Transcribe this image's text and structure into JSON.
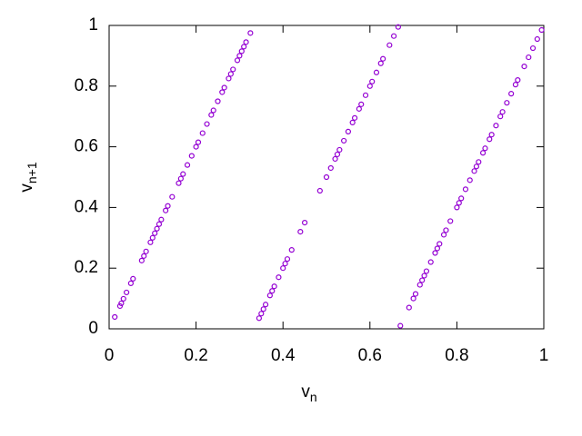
{
  "chart_data": {
    "type": "scatter",
    "xlabel": "v",
    "xlabel_subscript": "n",
    "ylabel": "v",
    "ylabel_subscript": "n+1",
    "color": "#9400d3",
    "xlim": [
      0,
      1
    ],
    "ylim": [
      0,
      1
    ],
    "xticks": [
      0,
      0.2,
      0.4,
      0.6,
      0.8,
      1
    ],
    "yticks": [
      0,
      0.2,
      0.4,
      0.6,
      0.8,
      1
    ],
    "x": [
      0.013,
      0.025,
      0.028,
      0.033,
      0.04,
      0.05,
      0.055,
      0.075,
      0.08,
      0.085,
      0.095,
      0.1,
      0.105,
      0.11,
      0.115,
      0.12,
      0.13,
      0.135,
      0.145,
      0.16,
      0.165,
      0.17,
      0.18,
      0.19,
      0.2,
      0.205,
      0.215,
      0.225,
      0.235,
      0.24,
      0.25,
      0.26,
      0.265,
      0.275,
      0.28,
      0.285,
      0.295,
      0.3,
      0.305,
      0.31,
      0.315,
      0.325,
      0.345,
      0.35,
      0.355,
      0.36,
      0.37,
      0.375,
      0.38,
      0.39,
      0.4,
      0.405,
      0.41,
      0.42,
      0.44,
      0.45,
      0.485,
      0.5,
      0.51,
      0.52,
      0.525,
      0.53,
      0.54,
      0.55,
      0.56,
      0.565,
      0.575,
      0.58,
      0.59,
      0.6,
      0.605,
      0.615,
      0.625,
      0.63,
      0.645,
      0.655,
      0.665,
      0.67,
      0.69,
      0.7,
      0.705,
      0.715,
      0.72,
      0.725,
      0.73,
      0.74,
      0.75,
      0.755,
      0.76,
      0.77,
      0.775,
      0.785,
      0.8,
      0.805,
      0.81,
      0.82,
      0.83,
      0.84,
      0.845,
      0.85,
      0.86,
      0.865,
      0.875,
      0.88,
      0.89,
      0.9,
      0.905,
      0.915,
      0.925,
      0.935,
      0.94,
      0.955,
      0.965,
      0.975,
      0.985,
      0.995
    ],
    "y": [
      0.039,
      0.075,
      0.084,
      0.099,
      0.12,
      0.15,
      0.165,
      0.225,
      0.24,
      0.255,
      0.285,
      0.3,
      0.315,
      0.33,
      0.345,
      0.36,
      0.39,
      0.405,
      0.435,
      0.48,
      0.495,
      0.51,
      0.54,
      0.57,
      0.6,
      0.615,
      0.645,
      0.675,
      0.705,
      0.72,
      0.75,
      0.78,
      0.795,
      0.825,
      0.84,
      0.855,
      0.885,
      0.9,
      0.915,
      0.93,
      0.945,
      0.975,
      0.035,
      0.05,
      0.065,
      0.08,
      0.11,
      0.125,
      0.14,
      0.17,
      0.2,
      0.215,
      0.23,
      0.26,
      0.32,
      0.35,
      0.455,
      0.5,
      0.53,
      0.56,
      0.575,
      0.59,
      0.62,
      0.65,
      0.68,
      0.695,
      0.725,
      0.74,
      0.77,
      0.8,
      0.815,
      0.845,
      0.875,
      0.89,
      0.935,
      0.965,
      0.995,
      0.01,
      0.07,
      0.1,
      0.115,
      0.145,
      0.16,
      0.175,
      0.19,
      0.22,
      0.25,
      0.265,
      0.28,
      0.31,
      0.325,
      0.355,
      0.4,
      0.415,
      0.43,
      0.46,
      0.49,
      0.52,
      0.535,
      0.55,
      0.58,
      0.595,
      0.625,
      0.64,
      0.67,
      0.7,
      0.715,
      0.745,
      0.775,
      0.805,
      0.82,
      0.865,
      0.895,
      0.925,
      0.955,
      0.985
    ]
  }
}
